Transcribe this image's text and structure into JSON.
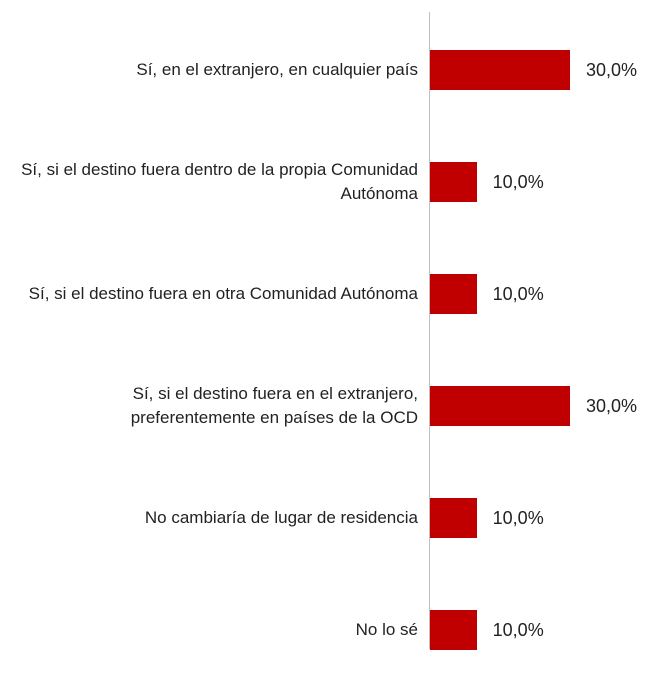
{
  "chart_data": {
    "type": "bar",
    "orientation": "horizontal",
    "categories": [
      "Sí, en el extranjero, en cualquier país",
      "Sí, si el destino fuera dentro de la propia Comunidad Autónoma",
      "Sí, si el destino fuera en otra Comunidad Autónoma",
      "Sí, si el destino fuera en el extranjero, preferentemente en países de la OCD",
      "No cambiaría de lugar de residencia",
      "No lo sé"
    ],
    "values": [
      30,
      10,
      10,
      30,
      10,
      10
    ],
    "value_labels": [
      "30,0%",
      "10,0%",
      "10,0%",
      "30,0%",
      "10,0%",
      "10,0%"
    ],
    "color": "#c00000"
  }
}
